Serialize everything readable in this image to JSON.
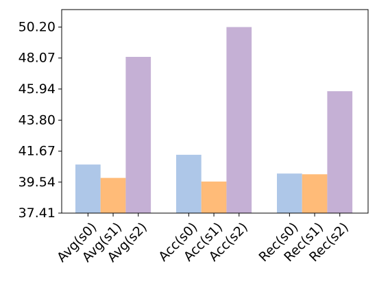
{
  "chart_data": {
    "type": "bar",
    "title": "",
    "xlabel": "",
    "ylabel": "",
    "ylim": [
      37.41,
      51.4
    ],
    "yticks": [
      "37.41",
      "39.54",
      "41.67",
      "43.80",
      "45.94",
      "48.07",
      "50.20"
    ],
    "grid": false,
    "legend": "none",
    "groups": [
      {
        "bars": [
          {
            "label": "Avg(s0)",
            "value": 40.75,
            "color": "#aec7e8"
          },
          {
            "label": "Avg(s1)",
            "value": 39.83,
            "color": "#ffbb78"
          },
          {
            "label": "Avg(s2)",
            "value": 48.15,
            "color": "#c5b0d5"
          }
        ]
      },
      {
        "bars": [
          {
            "label": "Acc(s0)",
            "value": 41.42,
            "color": "#aec7e8"
          },
          {
            "label": "Acc(s1)",
            "value": 39.58,
            "color": "#ffbb78"
          },
          {
            "label": "Acc(s2)",
            "value": 50.2,
            "color": "#c5b0d5"
          }
        ]
      },
      {
        "bars": [
          {
            "label": "Rec(s0)",
            "value": 40.13,
            "color": "#aec7e8"
          },
          {
            "label": "Rec(s1)",
            "value": 40.08,
            "color": "#ffbb78"
          },
          {
            "label": "Rec(s2)",
            "value": 45.79,
            "color": "#c5b0d5"
          }
        ]
      }
    ]
  }
}
